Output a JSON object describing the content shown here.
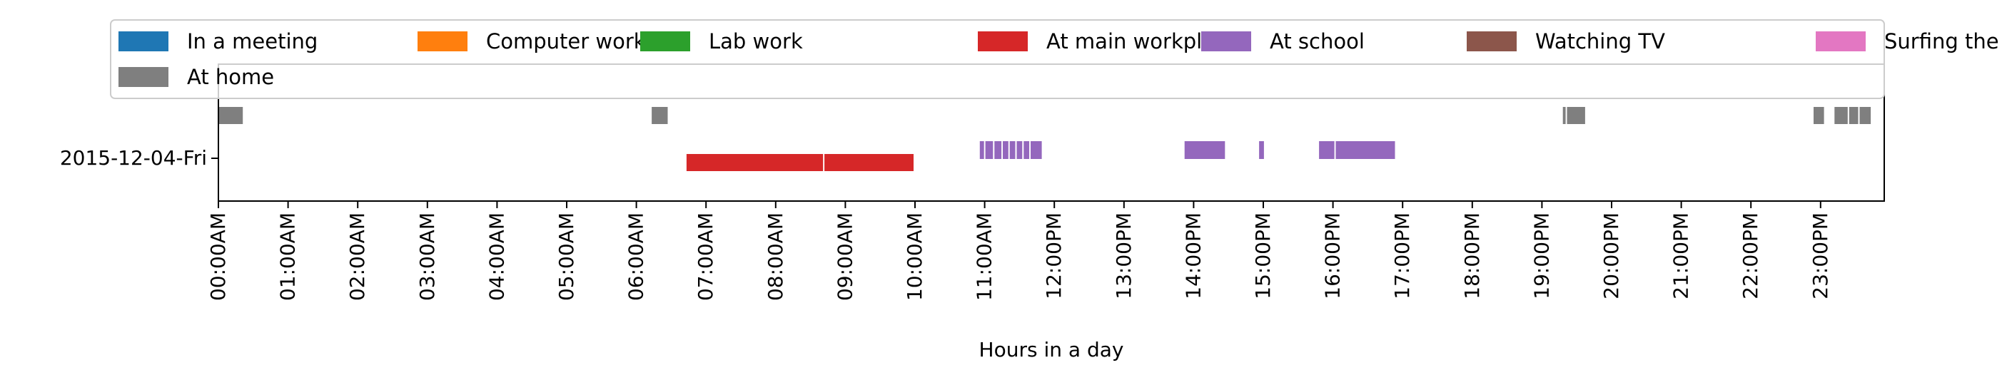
{
  "chart_data": {
    "type": "timeline",
    "title": "",
    "xlabel": "Hours in a day",
    "ylabel": "",
    "xlim_hours": [
      0,
      24
    ],
    "grid": false,
    "legend_placement": "top",
    "categories": [
      "2015-12-04-Fri"
    ],
    "x_ticks": [
      {
        "hour": 0,
        "label": "00:00AM"
      },
      {
        "hour": 1,
        "label": "01:00AM"
      },
      {
        "hour": 2,
        "label": "02:00AM"
      },
      {
        "hour": 3,
        "label": "03:00AM"
      },
      {
        "hour": 4,
        "label": "04:00AM"
      },
      {
        "hour": 5,
        "label": "05:00AM"
      },
      {
        "hour": 6,
        "label": "06:00AM"
      },
      {
        "hour": 7,
        "label": "07:00AM"
      },
      {
        "hour": 8,
        "label": "08:00AM"
      },
      {
        "hour": 9,
        "label": "09:00AM"
      },
      {
        "hour": 10,
        "label": "10:00AM"
      },
      {
        "hour": 11,
        "label": "11:00AM"
      },
      {
        "hour": 12,
        "label": "12:00PM"
      },
      {
        "hour": 13,
        "label": "13:00PM"
      },
      {
        "hour": 14,
        "label": "14:00PM"
      },
      {
        "hour": 15,
        "label": "15:00PM"
      },
      {
        "hour": 16,
        "label": "16:00PM"
      },
      {
        "hour": 17,
        "label": "17:00PM"
      },
      {
        "hour": 18,
        "label": "18:00PM"
      },
      {
        "hour": 19,
        "label": "19:00PM"
      },
      {
        "hour": 20,
        "label": "20:00PM"
      },
      {
        "hour": 21,
        "label": "21:00PM"
      },
      {
        "hour": 22,
        "label": "22:00PM"
      },
      {
        "hour": 23,
        "label": "23:00PM"
      }
    ],
    "series": [
      {
        "name": "In a meeting",
        "color": "#1f77b4",
        "intervals": []
      },
      {
        "name": "Computer work",
        "color": "#ff7f0e",
        "intervals": []
      },
      {
        "name": "Lab work",
        "color": "#2ca02c",
        "intervals": []
      },
      {
        "name": "At main workplace",
        "color": "#d62728",
        "intervals": [
          [
            6.72,
            8.68
          ],
          [
            8.7,
            9.98
          ]
        ]
      },
      {
        "name": "At school",
        "color": "#9467bd",
        "intervals": [
          [
            10.93,
            10.99
          ],
          [
            11.01,
            11.12
          ],
          [
            11.14,
            11.24
          ],
          [
            11.26,
            11.34
          ],
          [
            11.36,
            11.44
          ],
          [
            11.46,
            11.54
          ],
          [
            11.56,
            11.64
          ],
          [
            11.66,
            11.82
          ],
          [
            13.87,
            14.45
          ],
          [
            14.94,
            15.01
          ],
          [
            15.8,
            16.02
          ],
          [
            16.04,
            16.89
          ]
        ]
      },
      {
        "name": "Watching TV",
        "color": "#8c564b",
        "intervals": []
      },
      {
        "name": "Surfing the internet",
        "color": "#e377c2",
        "intervals": []
      },
      {
        "name": "At home",
        "color": "#7f7f7f",
        "intervals": [
          [
            0.0,
            0.35
          ],
          [
            6.22,
            6.45
          ],
          [
            19.3,
            19.34
          ],
          [
            19.36,
            19.62
          ],
          [
            22.9,
            23.05
          ],
          [
            23.2,
            23.39
          ],
          [
            23.41,
            23.54
          ],
          [
            23.56,
            23.72
          ]
        ]
      }
    ]
  }
}
